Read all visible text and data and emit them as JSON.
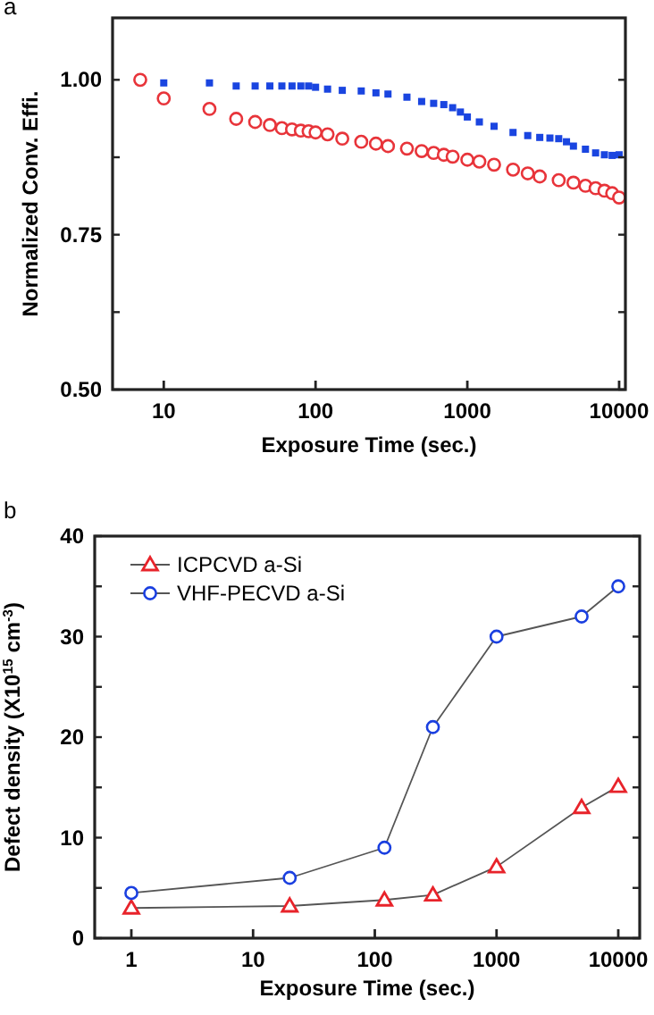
{
  "chart_data": [
    {
      "type": "scatter",
      "title": "a",
      "xlabel": "Exposure Time (sec.)",
      "ylabel": "Normalized Conv. Effi.",
      "log": "x",
      "xlim": [
        4.6,
        11000
      ],
      "xticks": [
        10,
        100,
        1000,
        10000
      ],
      "ylim": [
        0.5,
        1.1
      ],
      "yticks": [
        {
          "value": 0.5,
          "label": "0.50"
        },
        {
          "value": 0.625,
          "label": null
        },
        {
          "value": 0.75,
          "label": "0.75"
        },
        {
          "value": 0.875,
          "label": null
        },
        {
          "value": 1,
          "label": "1.00"
        }
      ],
      "grid": false,
      "legend": false,
      "series": [
        {
          "color": "#e8343a",
          "marker": "circle",
          "x": [
            7,
            10,
            20,
            30,
            40,
            50,
            60,
            70,
            80,
            90,
            100,
            120,
            150,
            200,
            250,
            300,
            400,
            500,
            600,
            700,
            800,
            1000,
            1200,
            1500,
            2000,
            2500,
            3000,
            4000,
            5000,
            6000,
            7000,
            8000,
            9000,
            10000
          ],
          "values": [
            1.0,
            0.97,
            0.953,
            0.937,
            0.932,
            0.927,
            0.922,
            0.92,
            0.918,
            0.917,
            0.915,
            0.912,
            0.905,
            0.9,
            0.897,
            0.893,
            0.889,
            0.885,
            0.882,
            0.879,
            0.876,
            0.871,
            0.868,
            0.863,
            0.855,
            0.849,
            0.844,
            0.838,
            0.834,
            0.829,
            0.825,
            0.821,
            0.817,
            0.81
          ]
        },
        {
          "color": "#1a45e0",
          "marker": "square",
          "x": [
            10,
            20,
            30,
            40,
            50,
            60,
            70,
            80,
            90,
            100,
            120,
            150,
            200,
            250,
            300,
            400,
            500,
            600,
            700,
            800,
            900,
            1000,
            1200,
            1500,
            2000,
            2500,
            3000,
            3500,
            4000,
            4500,
            5000,
            6000,
            7000,
            8000,
            9000,
            10000
          ],
          "values": [
            0.995,
            0.995,
            0.99,
            0.99,
            0.99,
            0.99,
            0.99,
            0.99,
            0.99,
            0.988,
            0.985,
            0.983,
            0.982,
            0.979,
            0.977,
            0.972,
            0.965,
            0.962,
            0.96,
            0.955,
            0.948,
            0.94,
            0.932,
            0.925,
            0.915,
            0.91,
            0.907,
            0.906,
            0.905,
            0.9,
            0.893,
            0.888,
            0.882,
            0.879,
            0.878,
            0.879
          ]
        }
      ]
    },
    {
      "type": "line",
      "title": "b",
      "xlabel": "Exposure Time (sec.)",
      "ylabel": "Defect density (X10$^{15}$ cm$^{-3}$)",
      "log": "x",
      "xlim": [
        0.5,
        15000
      ],
      "xticks": [
        1,
        10,
        100,
        1000,
        10000
      ],
      "ylim": [
        0,
        40
      ],
      "yticks": [
        0,
        {
          "value": 5,
          "label": null
        },
        10,
        {
          "value": 15,
          "label": null
        },
        20,
        {
          "value": 25,
          "label": null
        },
        30,
        {
          "value": 35,
          "label": null
        },
        40
      ],
      "grid": false,
      "legend": "top left",
      "x": [
        1,
        20,
        120,
        300,
        1000,
        5000,
        10000
      ],
      "series": [
        {
          "name": "ICPCVD a-Si",
          "color": "#e8232a",
          "marker": "triangle",
          "values": [
            3,
            3.2,
            3.8,
            4.3,
            7.1,
            13,
            15.1
          ]
        },
        {
          "name": "VHF-PECVD a-Si",
          "color": "#1a3fe0",
          "marker": "circle",
          "values": [
            4.5,
            6,
            9,
            21,
            30,
            32,
            35
          ]
        }
      ]
    }
  ]
}
